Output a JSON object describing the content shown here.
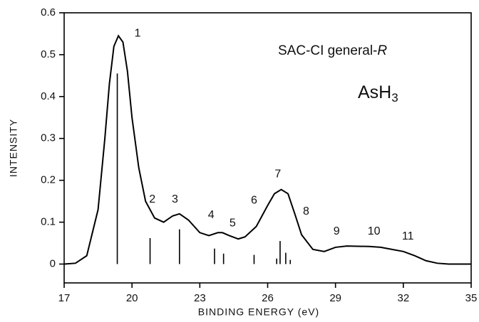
{
  "chart_data": {
    "type": "line",
    "x_label": "BINDING ENERGY (eV)",
    "y_label": "INTENSITY",
    "method": "SAC-CI general-",
    "method_suffix": "R",
    "molecule": "AsH",
    "molecule_subscript": "3",
    "xlim": [
      17,
      35
    ],
    "xticks": [
      17,
      20,
      23,
      26,
      29,
      32,
      35
    ],
    "ylim": [
      -0.045,
      0.6
    ],
    "yticks": [
      0,
      0.1,
      0.2,
      0.3,
      0.4,
      0.5,
      0.6
    ],
    "series": [
      {
        "style": "line",
        "color": "#000000",
        "x": [
          17,
          17.5,
          18,
          18.5,
          18.8,
          19.0,
          19.2,
          19.4,
          19.6,
          19.8,
          20.0,
          20.3,
          20.6,
          21.0,
          21.4,
          21.8,
          22.1,
          22.5,
          23.0,
          23.4,
          23.8,
          24.0,
          24.3,
          24.7,
          25.0,
          25.5,
          26.0,
          26.3,
          26.6,
          26.9,
          27.2,
          27.5,
          28.0,
          28.5,
          29.0,
          29.5,
          30.5,
          31.0,
          31.5,
          32.0,
          32.5,
          33.0,
          33.5,
          34,
          35
        ],
        "values": [
          0,
          0.002,
          0.02,
          0.13,
          0.3,
          0.43,
          0.52,
          0.545,
          0.53,
          0.46,
          0.35,
          0.23,
          0.15,
          0.11,
          0.1,
          0.115,
          0.12,
          0.105,
          0.075,
          0.068,
          0.075,
          0.075,
          0.068,
          0.06,
          0.065,
          0.09,
          0.14,
          0.168,
          0.178,
          0.168,
          0.12,
          0.07,
          0.035,
          0.03,
          0.04,
          0.043,
          0.042,
          0.04,
          0.035,
          0.03,
          0.02,
          0.008,
          0.002,
          0,
          0
        ]
      },
      {
        "style": "stick",
        "color": "#000000",
        "x": [
          19.35,
          20.8,
          22.1,
          23.65,
          24.05,
          25.4,
          26.4,
          26.55,
          26.8,
          27.0
        ],
        "values": [
          0.455,
          0.062,
          0.083,
          0.037,
          0.025,
          0.022,
          0.013,
          0.055,
          0.027,
          0.01
        ]
      }
    ],
    "annotations": [
      {
        "text": "1",
        "x": 20.25,
        "y": 0.55
      },
      {
        "text": "2",
        "x": 20.9,
        "y": 0.154
      },
      {
        "text": "3",
        "x": 21.9,
        "y": 0.154
      },
      {
        "text": "4",
        "x": 23.5,
        "y": 0.117
      },
      {
        "text": "5",
        "x": 24.45,
        "y": 0.097
      },
      {
        "text": "6",
        "x": 25.4,
        "y": 0.151
      },
      {
        "text": "7",
        "x": 26.45,
        "y": 0.214
      },
      {
        "text": "8",
        "x": 27.7,
        "y": 0.125
      },
      {
        "text": "9",
        "x": 29.05,
        "y": 0.078
      },
      {
        "text": "10",
        "x": 30.7,
        "y": 0.078
      },
      {
        "text": "11",
        "x": 32.2,
        "y": 0.066
      }
    ]
  }
}
